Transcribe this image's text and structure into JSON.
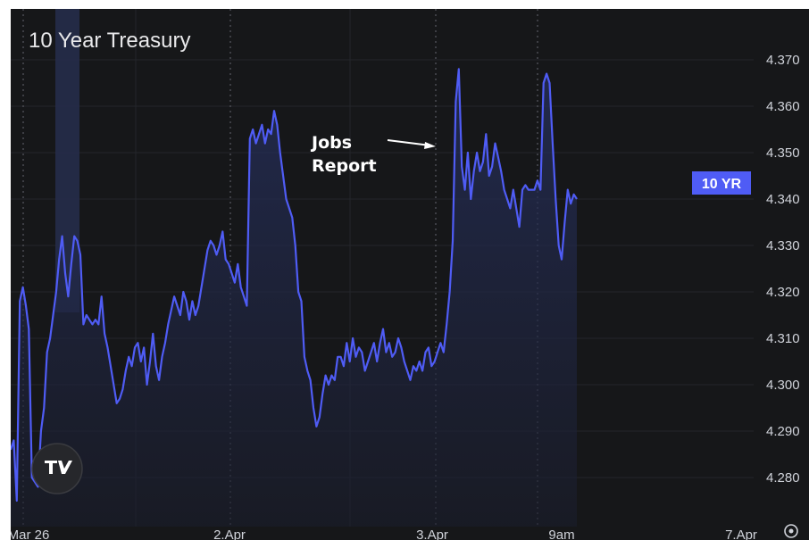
{
  "title": "10 Year Treasury",
  "chart_data": {
    "type": "line",
    "ylim": [
      4.274,
      4.374
    ],
    "y_ticks": [
      "4.370",
      "4.360",
      "4.350",
      "4.340",
      "4.330",
      "4.320",
      "4.310",
      "4.300",
      "4.290",
      "4.280"
    ],
    "x_ticks": [
      "Mar 26",
      "2.Apr",
      "3.Apr",
      "9am",
      "7.Apr"
    ],
    "grid": true,
    "line_color": "#4f5cf5",
    "area_color": "#1e2545",
    "series": [
      {
        "values": [
          4.286,
          4.288,
          4.275,
          4.318,
          4.321,
          4.317,
          4.312,
          4.28,
          4.279,
          4.278,
          4.29,
          4.295,
          4.307,
          4.31,
          4.315,
          4.32,
          4.327,
          4.332,
          4.324,
          4.319,
          4.326,
          4.332,
          4.331,
          4.328,
          4.313,
          4.315,
          4.314,
          4.313,
          4.314,
          4.313,
          4.319,
          4.311,
          4.308,
          4.304,
          4.3,
          4.296,
          4.297,
          4.299,
          4.303,
          4.306,
          4.304,
          4.308,
          4.309,
          4.305,
          4.308,
          4.3,
          4.305,
          4.311,
          4.304,
          4.301,
          4.306,
          4.309,
          4.313,
          4.316,
          4.319,
          4.317,
          4.315,
          4.32,
          4.318,
          4.314,
          4.318,
          4.315,
          4.317,
          4.321,
          4.325,
          4.329,
          4.331,
          4.33,
          4.328,
          4.33,
          4.333,
          4.327,
          4.326,
          4.324,
          4.322,
          4.326,
          4.321,
          4.319,
          4.317,
          4.353,
          4.355,
          4.352,
          4.354,
          4.356,
          4.352,
          4.355,
          4.354,
          4.359,
          4.356,
          4.35,
          4.345,
          4.34,
          4.338,
          4.336,
          4.33,
          4.32,
          4.318,
          4.306,
          4.303,
          4.301,
          4.295,
          4.291,
          4.293,
          4.298,
          4.302,
          4.3,
          4.302,
          4.301,
          4.306,
          4.306,
          4.304,
          4.309,
          4.305,
          4.31,
          4.306,
          4.308,
          4.307,
          4.303,
          4.305,
          4.307,
          4.309,
          4.305,
          4.309,
          4.312,
          4.307,
          4.309,
          4.306,
          4.307,
          4.31,
          4.308,
          4.305,
          4.303,
          4.301,
          4.304,
          4.303,
          4.305,
          4.303,
          4.307,
          4.308,
          4.304,
          4.305,
          4.307,
          4.309,
          4.307,
          4.313,
          4.32,
          4.331,
          4.361,
          4.368,
          4.347,
          4.342,
          4.35,
          4.34,
          4.346,
          4.35,
          4.346,
          4.348,
          4.354,
          4.345,
          4.347,
          4.352,
          4.349,
          4.346,
          4.342,
          4.34,
          4.338,
          4.342,
          4.338,
          4.334,
          4.342,
          4.343,
          4.342,
          4.342,
          4.342,
          4.344,
          4.342,
          4.365,
          4.367,
          4.365,
          4.352,
          4.34,
          4.33,
          4.327,
          4.335,
          4.342,
          4.339,
          4.341,
          4.34
        ],
        "color": "#4f5cf5"
      }
    ],
    "annotations": [
      {
        "text_lines": [
          "Jobs",
          "Report"
        ],
        "points_to_index": 146
      }
    ],
    "price_badge": {
      "label": "10 YR",
      "value": 4.34
    }
  },
  "logo": {
    "text": "TV"
  },
  "settings_icon": "gear-icon"
}
